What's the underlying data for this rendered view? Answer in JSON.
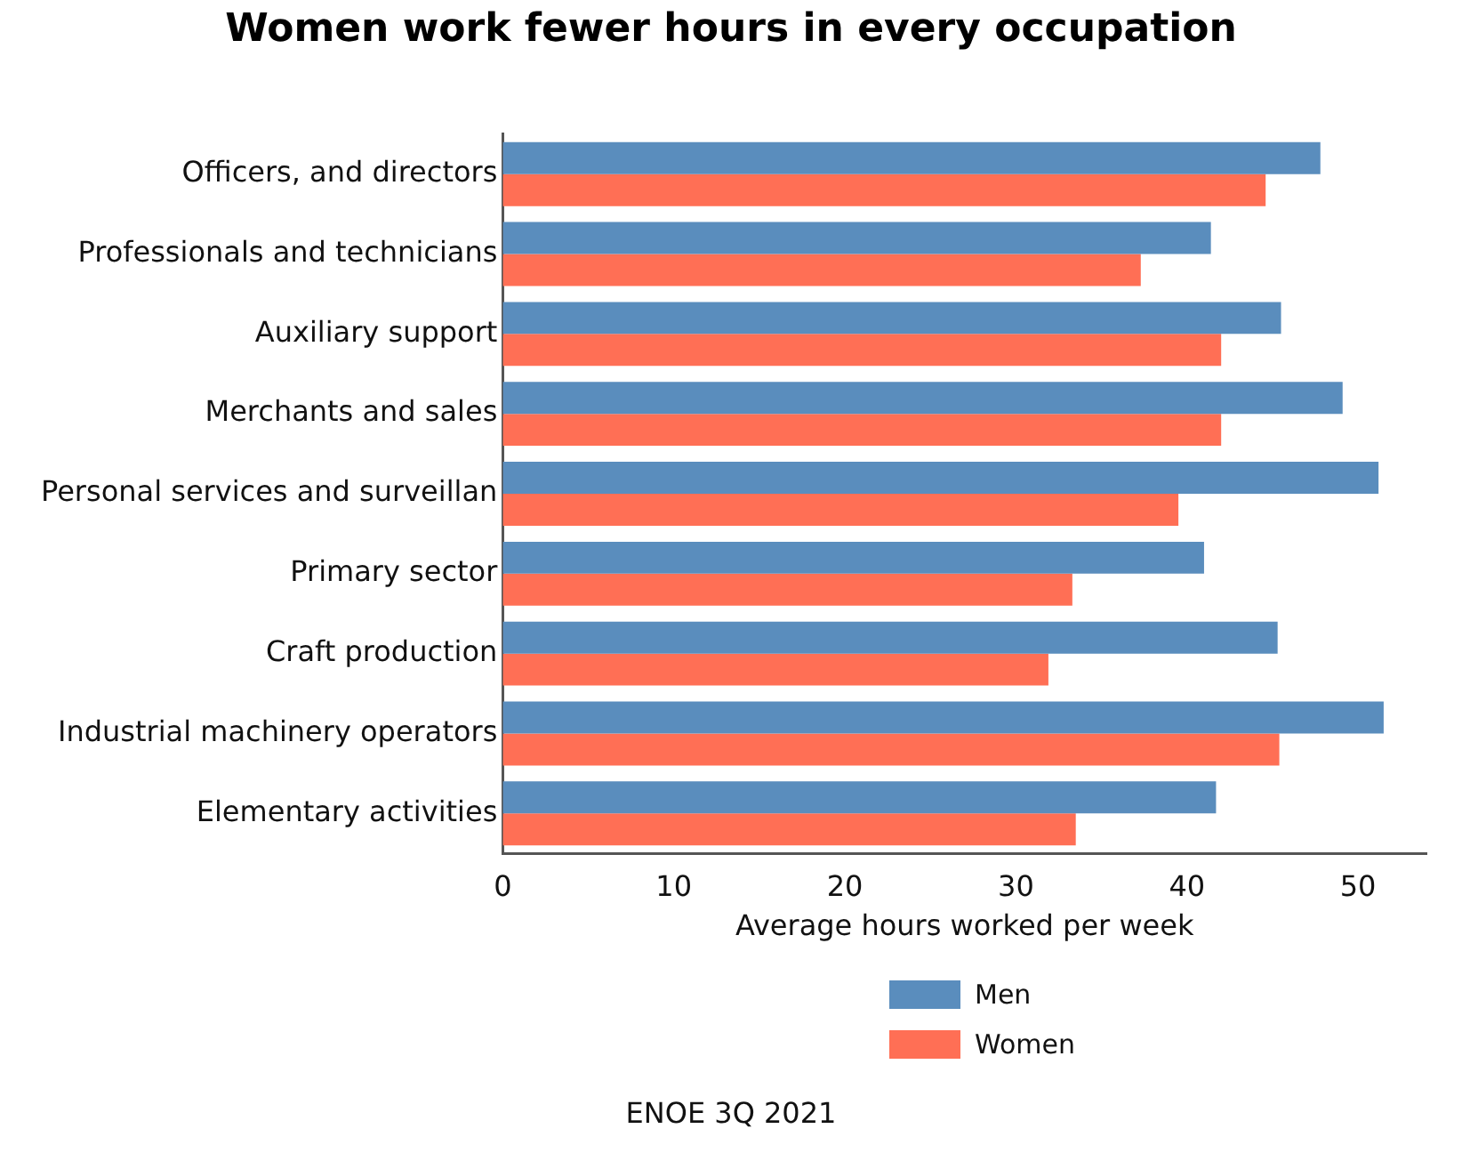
{
  "chart_data": {
    "type": "bar",
    "orientation": "horizontal",
    "title": "Women work fewer hours in every occupation",
    "xlabel": "Average hours worked per week",
    "categories": [
      "Officers, and directors",
      "Professionals and technicians",
      "Auxiliary support",
      "Merchants and sales",
      "Personal services and surveillan",
      "Primary sector",
      "Craft production",
      "Industrial machinery operators",
      "Elementary activities"
    ],
    "series": [
      {
        "name": "Men",
        "color": "#5a8dbd",
        "values": [
          47.8,
          41.4,
          45.5,
          49.1,
          51.2,
          41.0,
          45.3,
          51.5,
          41.7
        ]
      },
      {
        "name": "Women",
        "color": "#ff6f55",
        "values": [
          44.6,
          37.3,
          42.0,
          42.0,
          39.5,
          33.3,
          31.9,
          45.4,
          33.5
        ]
      }
    ],
    "xlim": [
      0,
      54
    ],
    "xticks": [
      0,
      10,
      20,
      30,
      40,
      50
    ],
    "grid": false,
    "legend": "bottom",
    "annotations": [
      "ENOE 3Q 2021"
    ]
  }
}
